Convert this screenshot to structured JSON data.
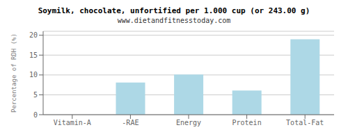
{
  "chart_data": {
    "type": "bar",
    "title": "Soymilk, chocolate, unfortified per 1.000 cup (or 243.00 g)",
    "subtitle": "www.dietandfitnesstoday.com",
    "categories": [
      "Vitamin-A",
      "-RAE",
      "Energy",
      "Protein",
      "Total-Fat"
    ],
    "values": [
      0,
      8.1,
      10.1,
      6.1,
      19.0
    ],
    "color": "#add8e6",
    "ylabel": "Percentage of RDH (%)",
    "ylim": [
      0,
      21
    ],
    "yticks": [
      0,
      5,
      10,
      15,
      20
    ],
    "grid": true
  }
}
